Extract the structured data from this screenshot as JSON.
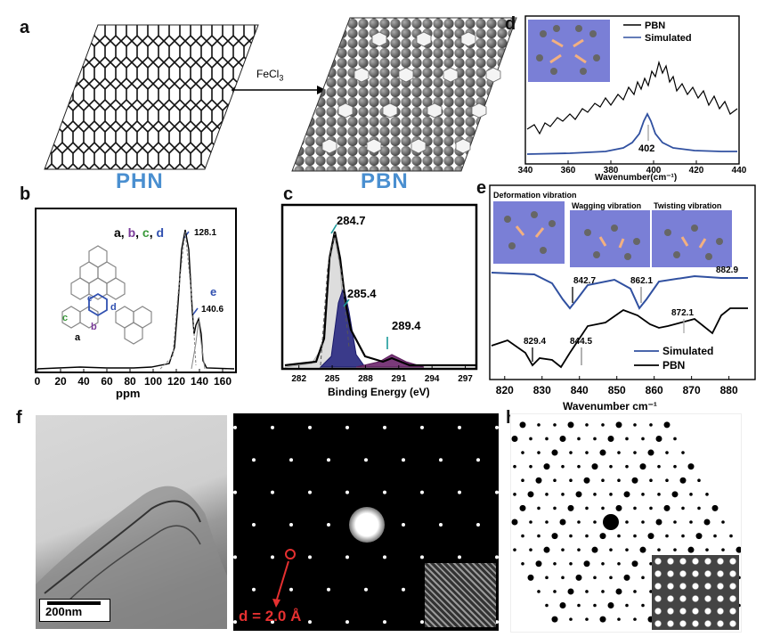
{
  "panels": {
    "a": {
      "label": "a",
      "left_name": "PHN",
      "right_name": "PBN",
      "reagent_base": "FeCl",
      "reagent_sub": "3"
    },
    "b": {
      "label": "b",
      "assign": [
        "a",
        "b",
        "c",
        "d"
      ],
      "peak1": "128.1",
      "peak2_letter": "e",
      "peak2": "140.6",
      "struct_labels": {
        "a": "a",
        "b": "b",
        "c": "c",
        "d": "d",
        "e": "e"
      }
    },
    "c": {
      "label": "c",
      "peaks": [
        "284.7",
        "285.4",
        "289.4"
      ]
    },
    "d": {
      "label": "d",
      "legend": [
        "PBN",
        "Simulated"
      ],
      "peak": "402"
    },
    "e": {
      "label": "e",
      "vibrations": [
        "Deformation vibration",
        "Wagging vibration",
        "Twisting vibration"
      ],
      "sim_peaks": [
        "842.7",
        "862.1",
        "882.9"
      ],
      "exp_peaks": [
        "829.4",
        "844.5",
        "872.1"
      ],
      "legend": [
        "Simulated",
        "PBN"
      ]
    },
    "f": {
      "label": "f",
      "scalebar": "200nm"
    },
    "g": {
      "label": "g",
      "dspacing": "d = 2.0 Å"
    },
    "h": {
      "label": "h"
    }
  },
  "chart_data": [
    {
      "type": "line",
      "panel": "b",
      "xlabel": "ppm",
      "xticks": [
        0,
        20,
        40,
        60,
        80,
        100,
        120,
        140,
        160
      ],
      "xlim": [
        0,
        170
      ],
      "annotations": [
        {
          "x": 128.1,
          "text": "128.1"
        },
        {
          "x": 140.6,
          "text": "140.6"
        }
      ]
    },
    {
      "type": "line",
      "panel": "c",
      "xlabel": "Binding Energy (eV)",
      "xticks": [
        282,
        285,
        288,
        291,
        294,
        297
      ],
      "xlim": [
        280.5,
        298
      ],
      "annotations": [
        {
          "x": 284.7,
          "text": "284.7"
        },
        {
          "x": 285.4,
          "text": "285.4"
        },
        {
          "x": 289.4,
          "text": "289.4"
        }
      ]
    },
    {
      "type": "line",
      "panel": "d",
      "xlabel": "Wavenumber(cm⁻¹)",
      "xticks": [
        340,
        360,
        380,
        400,
        420,
        440
      ],
      "xlim": [
        340,
        440
      ],
      "series": [
        {
          "name": "PBN"
        },
        {
          "name": "Simulated"
        }
      ],
      "annotations": [
        {
          "x": 402,
          "text": "402"
        }
      ]
    },
    {
      "type": "line",
      "panel": "e",
      "xlabel": "Wavenumber cm⁻¹",
      "xticks": [
        820,
        830,
        840,
        850,
        860,
        870,
        880
      ],
      "xlim": [
        816,
        887
      ],
      "series": [
        {
          "name": "Simulated"
        },
        {
          "name": "PBN"
        }
      ],
      "annotations": [
        {
          "x": 842.7,
          "text": "842.7"
        },
        {
          "x": 862.1,
          "text": "862.1"
        },
        {
          "x": 882.9,
          "text": "882.9"
        },
        {
          "x": 829.4,
          "text": "829.4"
        },
        {
          "x": 844.5,
          "text": "844.5"
        },
        {
          "x": 872.1,
          "text": "872.1"
        }
      ]
    }
  ]
}
